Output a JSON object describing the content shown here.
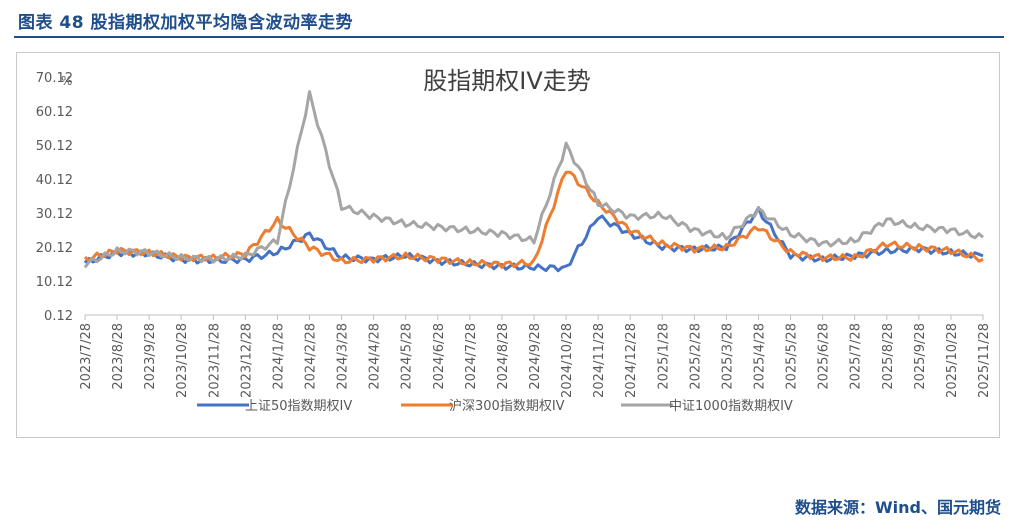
{
  "figure_title": "图表 48  股指期权加权平均隐含波动率走势",
  "source": "数据来源：Wind、国元期货",
  "chart_data": {
    "type": "line",
    "title": "股指期权IV走势",
    "y_unit": "%",
    "ylim": [
      0.12,
      70.12
    ],
    "yticks": [
      "0.12",
      "10.12",
      "20.12",
      "30.12",
      "40.12",
      "50.12",
      "60.12",
      "70.12"
    ],
    "grid": false,
    "legend": "bottom",
    "x": [
      "2023/7/28",
      "2023/8/28",
      "2023/9/28",
      "2023/10/28",
      "2023/11/28",
      "2023/12/28",
      "2024/1/28",
      "2024/2/28",
      "2024/3/28",
      "2024/4/28",
      "2024/5/28",
      "2024/6/28",
      "2024/7/28",
      "2024/8/28",
      "2024/9/28",
      "2024/10/28",
      "2024/11/28",
      "2024/12/28",
      "2025/1/28",
      "2025/2/28",
      "2025/3/28",
      "2025/4/28",
      "2025/5/28",
      "2025/6/28",
      "2025/7/28",
      "2025/8/28",
      "2025/9/28",
      "2025/10/28",
      "2025/11/28"
    ],
    "series": [
      {
        "name": "上证50指数期权IV",
        "color": "#4472c4",
        "values": [
          15.5,
          18.5,
          18,
          16.5,
          16,
          16.5,
          18.5,
          24,
          17,
          16.5,
          17.5,
          16,
          15,
          14.5,
          14,
          14,
          29,
          24,
          20,
          19.5,
          20,
          31,
          17.5,
          16.5,
          17.5,
          19,
          19.5,
          18.5,
          17.5
        ]
      },
      {
        "name": "沪深300指数期权IV",
        "color": "#ed7d31",
        "values": [
          16.5,
          19,
          18.5,
          17,
          17,
          18,
          28,
          20,
          16,
          16.5,
          17.5,
          16.5,
          15.5,
          15,
          15.5,
          43,
          33,
          25,
          21,
          19.5,
          20,
          26,
          18.5,
          17,
          17,
          21,
          20,
          19,
          16.5
        ]
      },
      {
        "name": "中证1000指数期权IV",
        "color": "#a5a5a5",
        "values": [
          15,
          19,
          18.5,
          17,
          16.5,
          17.5,
          22,
          65,
          32,
          29,
          27,
          26,
          25,
          24,
          22,
          50,
          33,
          29,
          29.5,
          25,
          23,
          31,
          24,
          21,
          22,
          28,
          26,
          25,
          23
        ]
      }
    ]
  }
}
